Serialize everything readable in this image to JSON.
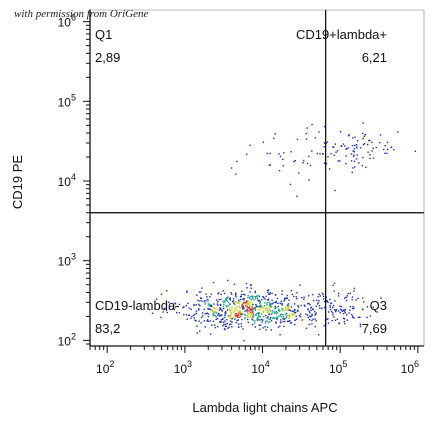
{
  "watermark": "with permission from OriGene",
  "chart_data": {
    "type": "scatter",
    "title": "",
    "xlabel": "Lambda light chains  APC",
    "ylabel": "CD19 PE",
    "x_scale": "log",
    "y_scale": "log",
    "xlim": [
      60,
      1200000
    ],
    "ylim": [
      85,
      1400000
    ],
    "x_ticks": [
      {
        "value": 100,
        "base": "10",
        "exp": "2"
      },
      {
        "value": 1000,
        "base": "10",
        "exp": "3"
      },
      {
        "value": 10000,
        "base": "10",
        "exp": "4"
      },
      {
        "value": 100000,
        "base": "10",
        "exp": "5"
      },
      {
        "value": 1000000,
        "base": "10",
        "exp": "6"
      }
    ],
    "y_ticks": [
      {
        "value": 100,
        "base": "10",
        "exp": "2"
      },
      {
        "value": 1000,
        "base": "10",
        "exp": "3"
      },
      {
        "value": 10000,
        "base": "10",
        "exp": "4"
      },
      {
        "value": 100000,
        "base": "10",
        "exp": "5"
      },
      {
        "value": 1000000,
        "base": "10",
        "exp": "6"
      }
    ],
    "gates": {
      "x": 65000,
      "y": 4000
    },
    "quadrants": [
      {
        "id": "q1",
        "name": "Q1",
        "percent": "2,89",
        "position": "top-left"
      },
      {
        "id": "q2",
        "name": "CD19+lambda+",
        "percent": "6,21",
        "position": "top-right"
      },
      {
        "id": "q3",
        "name": "Q3",
        "percent": "7,69",
        "position": "bottom-right"
      },
      {
        "id": "q4",
        "name": "CD19-lambda-",
        "percent": "83,2",
        "position": "bottom-left"
      }
    ],
    "populations": [
      {
        "name": "CD19-lambda- dense cluster",
        "x_center": 7000,
        "y_center": 250,
        "x_spread": 0.45,
        "y_spread": 0.12,
        "count": 750
      },
      {
        "name": "CD19-lambda- right tail",
        "x_center": 90000,
        "y_center": 260,
        "x_spread": 0.25,
        "y_spread": 0.12,
        "count": 110
      },
      {
        "name": "CD19+lambda+",
        "x_center": 150000,
        "y_center": 25000,
        "x_spread": 0.3,
        "y_spread": 0.12,
        "count": 90
      },
      {
        "name": "CD19+lambda- scattered",
        "x_center": 20000,
        "y_center": 20000,
        "x_spread": 0.35,
        "y_spread": 0.18,
        "count": 40
      }
    ],
    "grid": false,
    "legend": "none",
    "colors": {
      "axis": "#111111",
      "gate": "#000000",
      "events_sparse": "#1a2fb5",
      "events_medium": "#1f9e89",
      "events_dense": "#c8d21e",
      "events_peak": "#d9342b"
    }
  }
}
